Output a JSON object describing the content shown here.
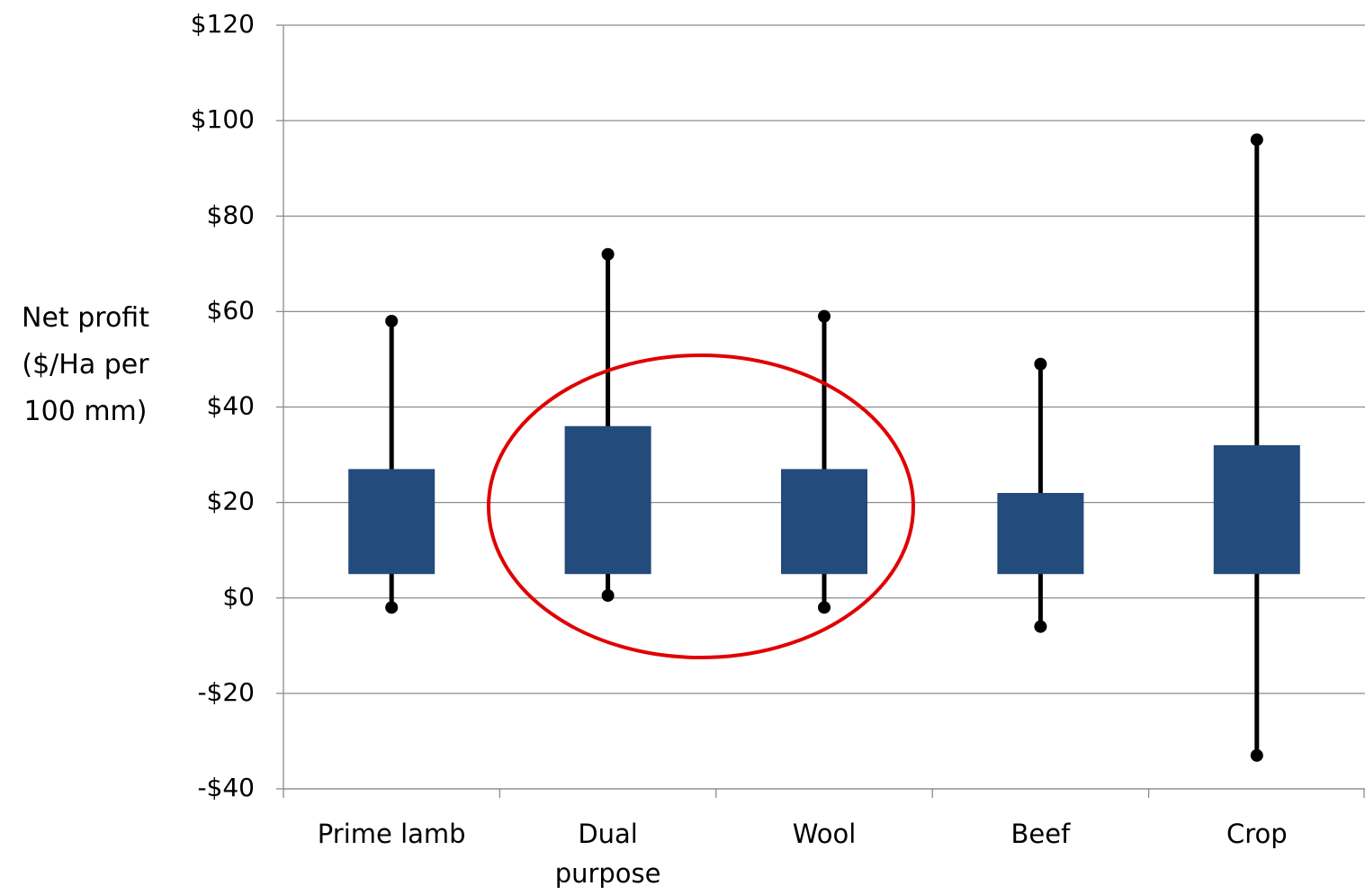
{
  "chart_data": {
    "type": "floating_box",
    "y_label": "Net profit ($/Ha per 100 mm)",
    "categories": [
      "Prime lamb",
      "Dual purpose",
      "Wool",
      "Beef",
      "Crop"
    ],
    "box_low": [
      5,
      5,
      5,
      5,
      5
    ],
    "box_high": [
      27,
      36,
      27,
      22,
      32
    ],
    "whisker_low": [
      -2,
      0.5,
      -2,
      -6,
      -33
    ],
    "whisker_high": [
      58,
      72,
      59,
      49,
      96
    ],
    "color": "#234b7c",
    "ylim": [
      -40,
      120
    ],
    "yticks": [
      {
        "value": -40,
        "label": "-$40"
      },
      {
        "value": -20,
        "label": "-$20"
      },
      {
        "value": 0,
        "label": "$0"
      },
      {
        "value": 20,
        "label": "$20"
      },
      {
        "value": 40,
        "label": "$40"
      },
      {
        "value": 60,
        "label": "$60"
      },
      {
        "value": 80,
        "label": "$80"
      },
      {
        "value": 100,
        "label": "$100"
      },
      {
        "value": 120,
        "label": "$120"
      }
    ],
    "grid": true
  }
}
